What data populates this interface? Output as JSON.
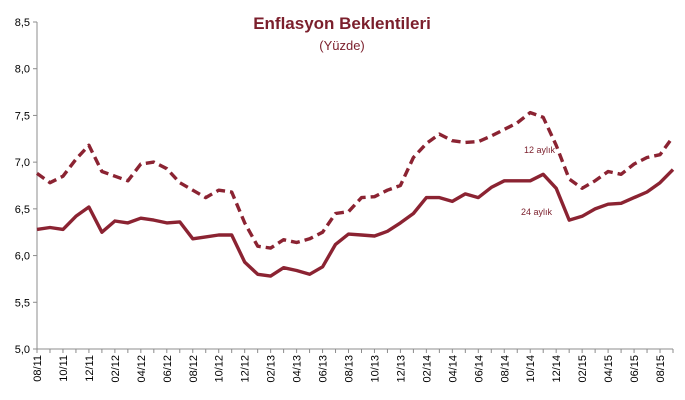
{
  "chart_data": {
    "type": "line",
    "title": "Enflasyon Beklentileri",
    "subtitle": "(Yüzde)",
    "xlabel": "",
    "ylabel": "",
    "ylim": [
      5.0,
      8.5
    ],
    "yticks": [
      5.0,
      5.5,
      6.0,
      6.5,
      7.0,
      7.5,
      8.0,
      8.5
    ],
    "ytick_labels": [
      "5,0",
      "5,5",
      "6,0",
      "6,5",
      "7,0",
      "7,5",
      "8,0",
      "8,5"
    ],
    "grid": false,
    "legend": "none",
    "x": [
      "2011-08",
      "2011-09",
      "2011-10",
      "2011-11",
      "2011-12",
      "2012-01",
      "2012-02",
      "2012-03",
      "2012-04",
      "2012-05",
      "2012-06",
      "2012-07",
      "2012-08",
      "2012-09",
      "2012-10",
      "2012-11",
      "2012-12",
      "2013-01",
      "2013-02",
      "2013-03",
      "2013-04",
      "2013-05",
      "2013-06",
      "2013-07",
      "2013-08",
      "2013-09",
      "2013-10",
      "2013-11",
      "2013-12",
      "2014-01",
      "2014-02",
      "2014-03",
      "2014-04",
      "2014-05",
      "2014-06",
      "2014-07",
      "2014-08",
      "2014-09",
      "2014-10",
      "2014-11",
      "2014-12",
      "2015-01",
      "2015-02",
      "2015-03",
      "2015-04",
      "2015-05",
      "2015-06",
      "2015-07",
      "2015-08",
      "2015-09"
    ],
    "xtick_labels": [
      "08/11",
      "10/11",
      "12/11",
      "02/12",
      "04/12",
      "06/12",
      "08/12",
      "10/12",
      "12/12",
      "02/13",
      "04/13",
      "06/13",
      "08/13",
      "10/13",
      "12/13",
      "02/14",
      "04/14",
      "06/14",
      "08/14",
      "10/14",
      "12/14",
      "02/15",
      "04/15",
      "06/15",
      "08/15"
    ],
    "series": [
      {
        "name": "12 aylık",
        "style": "dashed",
        "color": "#8b2332",
        "values": [
          6.88,
          6.78,
          6.85,
          7.03,
          7.18,
          6.9,
          6.85,
          6.8,
          6.98,
          7.0,
          6.93,
          6.78,
          6.7,
          6.62,
          6.7,
          6.68,
          6.35,
          6.1,
          6.08,
          6.17,
          6.14,
          6.18,
          6.25,
          6.45,
          6.47,
          6.62,
          6.63,
          6.7,
          6.75,
          7.05,
          7.2,
          7.3,
          7.23,
          7.21,
          7.22,
          7.28,
          7.35,
          7.42,
          7.53,
          7.48,
          7.18,
          6.82,
          6.72,
          6.8,
          6.9,
          6.87,
          6.98,
          7.05,
          7.08,
          7.27
        ]
      },
      {
        "name": "24 aylık",
        "style": "solid",
        "color": "#8b2332",
        "values": [
          6.28,
          6.3,
          6.28,
          6.42,
          6.52,
          6.25,
          6.37,
          6.35,
          6.4,
          6.38,
          6.35,
          6.36,
          6.18,
          6.2,
          6.22,
          6.22,
          5.93,
          5.8,
          5.78,
          5.87,
          5.84,
          5.8,
          5.88,
          6.12,
          6.23,
          6.22,
          6.21,
          6.26,
          6.35,
          6.45,
          6.62,
          6.62,
          6.58,
          6.66,
          6.62,
          6.73,
          6.8,
          6.8,
          6.8,
          6.87,
          6.72,
          6.38,
          6.42,
          6.5,
          6.55,
          6.56,
          6.62,
          6.68,
          6.78,
          6.92
        ]
      }
    ]
  }
}
